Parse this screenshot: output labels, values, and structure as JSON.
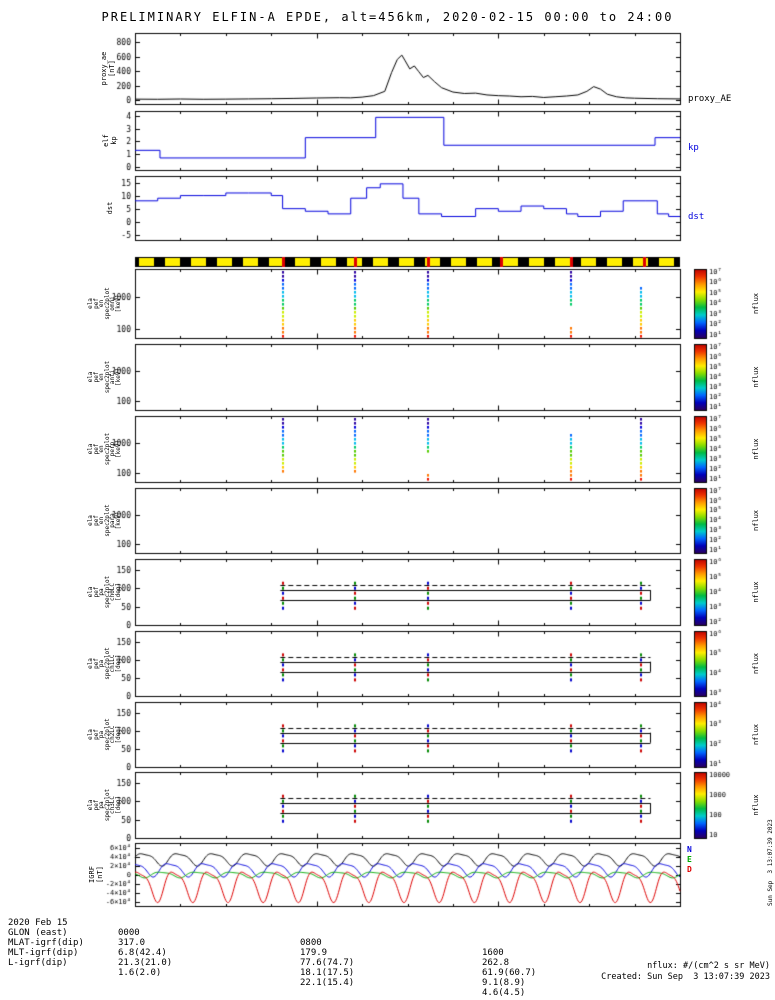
{
  "title": "PRELIMINARY ELFIN-A EPDE, alt=456km, 2020-02-15 00:00 to 24:00",
  "labels": {
    "nflux": "nflux"
  },
  "chart_data": [
    {
      "id": "proxy_ae",
      "type": "line",
      "ylabel": "proxy_ae\n[nT]",
      "right_label": "proxy_AE",
      "color": "#000000",
      "ylim": [
        -55,
        925
      ],
      "yticks": [
        0,
        200,
        400,
        600,
        800
      ],
      "x_hours": [
        0,
        1,
        2,
        3,
        4,
        5,
        6,
        7,
        8,
        9,
        9.5,
        10,
        10.5,
        11,
        11.3,
        11.55,
        11.75,
        11.9,
        12.1,
        12.3,
        12.5,
        12.7,
        12.9,
        13.2,
        13.5,
        14,
        14.5,
        15,
        15.5,
        16,
        16.5,
        17,
        17.5,
        18,
        18.5,
        19,
        19.5,
        19.9,
        20.2,
        20.5,
        20.8,
        21.2,
        21.6,
        22,
        23,
        24
      ],
      "values": [
        12,
        10,
        14,
        10,
        12,
        15,
        18,
        22,
        28,
        32,
        30,
        40,
        60,
        120,
        380,
        560,
        620,
        540,
        430,
        470,
        390,
        310,
        340,
        250,
        170,
        110,
        90,
        95,
        70,
        60,
        55,
        45,
        50,
        35,
        45,
        55,
        70,
        120,
        185,
        150,
        80,
        45,
        30,
        25,
        18,
        15
      ]
    },
    {
      "id": "kp",
      "type": "step",
      "ylabel": "elf\nkp",
      "right_label": "kp",
      "color": "#0000dd",
      "ylim": [
        -0.25,
        4.4
      ],
      "yticks": [
        0,
        1,
        2,
        3,
        4
      ],
      "steps": [
        [
          0,
          1.3
        ],
        [
          1.1,
          0.7
        ],
        [
          7.5,
          2.3
        ],
        [
          10.6,
          3.9
        ],
        [
          13.6,
          1.7
        ],
        [
          22.9,
          2.3
        ]
      ]
    },
    {
      "id": "dst",
      "type": "step",
      "ylabel": "dst",
      "right_label": "dst",
      "color": "#0000dd",
      "ylim": [
        -7,
        17.5
      ],
      "yticks": [
        -5,
        0,
        5,
        10,
        15
      ],
      "steps": [
        [
          0,
          8
        ],
        [
          1,
          9
        ],
        [
          2,
          10
        ],
        [
          3,
          10
        ],
        [
          4,
          11
        ],
        [
          5,
          11
        ],
        [
          6,
          10
        ],
        [
          6.5,
          5
        ],
        [
          7.5,
          4
        ],
        [
          8.5,
          3
        ],
        [
          9.5,
          9
        ],
        [
          10.2,
          13
        ],
        [
          10.8,
          14.5
        ],
        [
          11.8,
          9
        ],
        [
          12.5,
          3
        ],
        [
          13.5,
          2
        ],
        [
          15,
          5
        ],
        [
          16,
          4
        ],
        [
          17,
          6
        ],
        [
          18,
          5
        ],
        [
          19,
          3
        ],
        [
          19.5,
          2
        ],
        [
          20.5,
          4
        ],
        [
          21.5,
          8
        ],
        [
          22.5,
          8
        ],
        [
          23,
          3
        ],
        [
          23.5,
          2
        ]
      ]
    },
    {
      "id": "science_zone_bar",
      "type": "zonebar",
      "colors": {
        "base": "#000000",
        "dash": "#ffee00",
        "tick": "#dd0000"
      },
      "tick_hours": [
        6.5,
        9.7,
        12.9,
        16.1,
        19.2,
        22.4
      ]
    },
    {
      "id": "ela_pef_en_spec2plot_omni",
      "type": "spectrogram",
      "ylabel": "ela\npef\nen\nspec2plot\nomni\n[keV]",
      "ylog": true,
      "ylim": [
        50,
        8000
      ],
      "yticks": [
        100,
        1000
      ],
      "strip_hours": [
        6.5,
        9.7,
        12.9,
        19.2,
        22.3
      ],
      "colorbar": {
        "label": "nflux",
        "ticks": [
          "10⁷",
          "10⁶",
          "10⁵",
          "10⁴",
          "10³",
          "10²",
          "10¹"
        ]
      }
    },
    {
      "id": "ela_pef_en_spec2plot_anti",
      "type": "spectrogram",
      "ylabel": "ela\npef\nen\nspec2plot\nanti\n[keV]",
      "ylog": true,
      "ylim": [
        50,
        8000
      ],
      "yticks": [
        100,
        1000
      ],
      "strip_hours": [],
      "colorbar": {
        "label": "nflux",
        "ticks": [
          "10⁷",
          "10⁶",
          "10⁵",
          "10⁴",
          "10³",
          "10²",
          "10¹"
        ]
      }
    },
    {
      "id": "ela_pef_en_spec2plot_perp",
      "type": "spectrogram",
      "ylabel": "ela\npef\nen\nspec2plot\nperp\n[keV]",
      "ylog": true,
      "ylim": [
        50,
        8000
      ],
      "yticks": [
        100,
        1000
      ],
      "strip_hours": [
        6.5,
        9.7,
        12.9,
        19.2,
        22.3
      ],
      "colorbar": {
        "label": "nflux",
        "ticks": [
          "10⁷",
          "10⁶",
          "10⁵",
          "10⁴",
          "10³",
          "10²",
          "10¹"
        ]
      }
    },
    {
      "id": "ela_pef_en_spec2plot_para",
      "type": "spectrogram",
      "ylabel": "ela\npef\nen\nspec2plot\npara\n[keV]",
      "ylog": true,
      "ylim": [
        50,
        8000
      ],
      "yticks": [
        100,
        1000
      ],
      "strip_hours": [],
      "colorbar": {
        "label": "nflux",
        "ticks": [
          "10⁷",
          "10⁶",
          "10⁵",
          "10⁴",
          "10³",
          "10²",
          "10¹"
        ]
      }
    },
    {
      "id": "ela_pef_pa_spec2plot_ch0LC",
      "type": "pitch_angle",
      "ylabel": "ela\npef\npa\nspec2plot\nch0LC\n[deg]",
      "ylim": [
        0,
        180
      ],
      "yticks": [
        0,
        50,
        100,
        150
      ],
      "span_hours": [
        6.4,
        22.7
      ],
      "dashed_line_deg": 108,
      "solid_lines_deg": [
        95,
        67
      ],
      "tick_hours": [
        6.5,
        9.7,
        12.9,
        19.2,
        22.3
      ],
      "colorbar": {
        "label": "nflux",
        "ticks": [
          "10⁶",
          "10⁵",
          "10⁴",
          "10³",
          "10²"
        ]
      }
    },
    {
      "id": "ela_pef_pa_spec2plot_ch1LC",
      "type": "pitch_angle",
      "ylabel": "ela\npef\npa\nspec2plot\nch1LC\n[deg]",
      "ylim": [
        0,
        180
      ],
      "yticks": [
        0,
        50,
        100,
        150
      ],
      "span_hours": [
        6.4,
        22.7
      ],
      "dashed_line_deg": 108,
      "solid_lines_deg": [
        95,
        67
      ],
      "tick_hours": [
        6.5,
        9.7,
        12.9,
        19.2,
        22.3
      ],
      "colorbar": {
        "label": "nflux",
        "ticks": [
          "10⁶",
          "10⁵",
          "10⁴",
          "10³"
        ]
      }
    },
    {
      "id": "ela_pef_pa_spec2plot_ch2LC",
      "type": "pitch_angle",
      "ylabel": "ela\npef\npa\nspec2plot\nch2LC\n[deg]",
      "ylim": [
        0,
        180
      ],
      "yticks": [
        0,
        50,
        100,
        150
      ],
      "span_hours": [
        6.4,
        22.7
      ],
      "dashed_line_deg": 108,
      "solid_lines_deg": [
        95,
        67
      ],
      "tick_hours": [
        6.5,
        9.7,
        12.9,
        19.2,
        22.3
      ],
      "colorbar": {
        "label": "nflux",
        "ticks": [
          "10⁴",
          "10³",
          "10²",
          "10¹"
        ]
      }
    },
    {
      "id": "ela_pef_pa_spec2plot_ch3LC",
      "type": "pitch_angle",
      "ylabel": "ela\npef\npa\nspec2plot\nch3LC\n[deg]",
      "ylim": [
        0,
        180
      ],
      "yticks": [
        0,
        50,
        100,
        150
      ],
      "span_hours": [
        6.4,
        22.7
      ],
      "dashed_line_deg": 108,
      "solid_lines_deg": [
        95,
        67
      ],
      "tick_hours": [
        6.5,
        9.7,
        12.9,
        19.2,
        22.3
      ],
      "colorbar": {
        "label": "nflux",
        "ticks": [
          "10000",
          "1000",
          "100",
          "10"
        ]
      }
    },
    {
      "id": "IGRF",
      "type": "multi_line",
      "ylabel": "IGRF\n[nT]",
      "ylim": [
        -70000,
        70000
      ],
      "ytick_values": [
        60000,
        40000,
        20000,
        0,
        -20000,
        -40000,
        -60000
      ],
      "ytick_labels": [
        "6×10⁴",
        "4×10⁴",
        "2×10⁴",
        "0",
        "-2×10⁴",
        "-4×10⁴",
        "-6×10⁴"
      ],
      "period_hours": 1.55,
      "series": [
        {
          "name": "B",
          "color": "#000000",
          "offset": 35000,
          "amp": 13000,
          "phase": 0
        },
        {
          "name": "N",
          "color": "#0000dd",
          "offset": 12000,
          "amp": 14000,
          "phase": 1.6
        },
        {
          "name": "E",
          "color": "#00aa00",
          "offset": 0,
          "amp": 6000,
          "phase": 3.1
        },
        {
          "name": "D",
          "color": "#dd0000",
          "offset": -22000,
          "amp": 32000,
          "phase": 0.8
        }
      ],
      "legend": [
        {
          "label": "N",
          "color": "#0000dd"
        },
        {
          "label": "E",
          "color": "#00aa00"
        },
        {
          "label": "D",
          "color": "#dd0000"
        }
      ]
    }
  ],
  "x_axis": {
    "major_tick_hours": [
      0,
      8,
      16,
      24
    ],
    "minor_step_hours": 2
  },
  "bottom_table": {
    "rows": [
      {
        "label": "2020 Feb 15",
        "values": [
          "0000",
          "0800",
          "1600"
        ]
      },
      {
        "label": "GLON (east)",
        "values": [
          "317.0",
          "179.9",
          "262.8"
        ]
      },
      {
        "label": "MLAT-igrf(dip)",
        "values": [
          "6.8(42.4)",
          "77.6(74.7)",
          "61.9(60.7)"
        ]
      },
      {
        "label": "MLT-igrf(dip)",
        "values": [
          "21.3(21.0)",
          "18.1(17.5)",
          "9.1(8.9)"
        ]
      },
      {
        "label": "L-igrf(dip)",
        "values": [
          "1.6(2.0)",
          "22.1(15.4)",
          "4.6(4.5)"
        ]
      }
    ]
  },
  "footer": {
    "nflux_units": "nflux: #/(cm^2 s sr MeV)",
    "created": "Created: Sun Sep  3 13:07:39 2023",
    "created_short": "Sun Sep  3 13:07:39 2023"
  }
}
